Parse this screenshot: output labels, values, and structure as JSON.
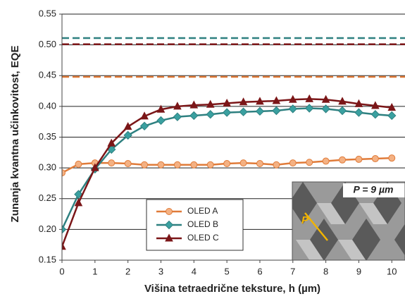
{
  "chart_data": {
    "type": "line",
    "xlabel": "Višina tetraedrične teksture, h (µm)",
    "ylabel": "Zunanja kvantna učinkovitost, EQE",
    "x": [
      0,
      0.5,
      1,
      1.5,
      2,
      2.5,
      3,
      3.5,
      4,
      4.5,
      5,
      5.5,
      6,
      6.5,
      7,
      7.5,
      8,
      8.5,
      9,
      9.5,
      10
    ],
    "series": [
      {
        "name": "OLED A",
        "color": "#e07b39",
        "fill": "#f4b183",
        "marker": "circle",
        "values": [
          0.292,
          0.306,
          0.308,
          0.308,
          0.307,
          0.305,
          0.305,
          0.305,
          0.305,
          0.305,
          0.307,
          0.308,
          0.307,
          0.305,
          0.308,
          0.309,
          0.311,
          0.313,
          0.314,
          0.315,
          0.316
        ]
      },
      {
        "name": "OLED B",
        "color": "#2e8080",
        "fill": "#3aa0a0",
        "marker": "diamond",
        "values": [
          0.2,
          0.257,
          0.298,
          0.33,
          0.353,
          0.368,
          0.377,
          0.383,
          0.385,
          0.387,
          0.39,
          0.391,
          0.392,
          0.393,
          0.396,
          0.397,
          0.396,
          0.393,
          0.39,
          0.387,
          0.385
        ]
      },
      {
        "name": "OLED C",
        "color": "#7b1618",
        "fill": "#7b1618",
        "marker": "triangle",
        "values": [
          0.172,
          0.243,
          0.3,
          0.34,
          0.367,
          0.384,
          0.395,
          0.4,
          0.402,
          0.403,
          0.405,
          0.407,
          0.408,
          0.409,
          0.411,
          0.412,
          0.411,
          0.408,
          0.404,
          0.401,
          0.398
        ]
      }
    ],
    "reference_lines": [
      {
        "value": 0.511,
        "color": "#2e8080"
      },
      {
        "value": 0.501,
        "color": "#7b1618"
      },
      {
        "value": 0.448,
        "color": "#e07b39"
      }
    ],
    "xlim": [
      0,
      10.4
    ],
    "xticks": [
      0,
      1,
      2,
      3,
      4,
      5,
      6,
      7,
      8,
      9,
      10
    ],
    "ylim": [
      0.15,
      0.55
    ],
    "yticks": [
      0.15,
      {
        "value": 0.2,
        "label": "0.20"
      },
      0.25,
      {
        "value": 0.3,
        "label": "0.30"
      },
      0.35,
      {
        "value": 0.4,
        "label": "0.40"
      },
      0.45,
      {
        "value": 0.5,
        "label": "0.50"
      },
      0.55
    ],
    "grid": true,
    "inset_labels": [
      "P = 9 µm",
      "P"
    ]
  }
}
